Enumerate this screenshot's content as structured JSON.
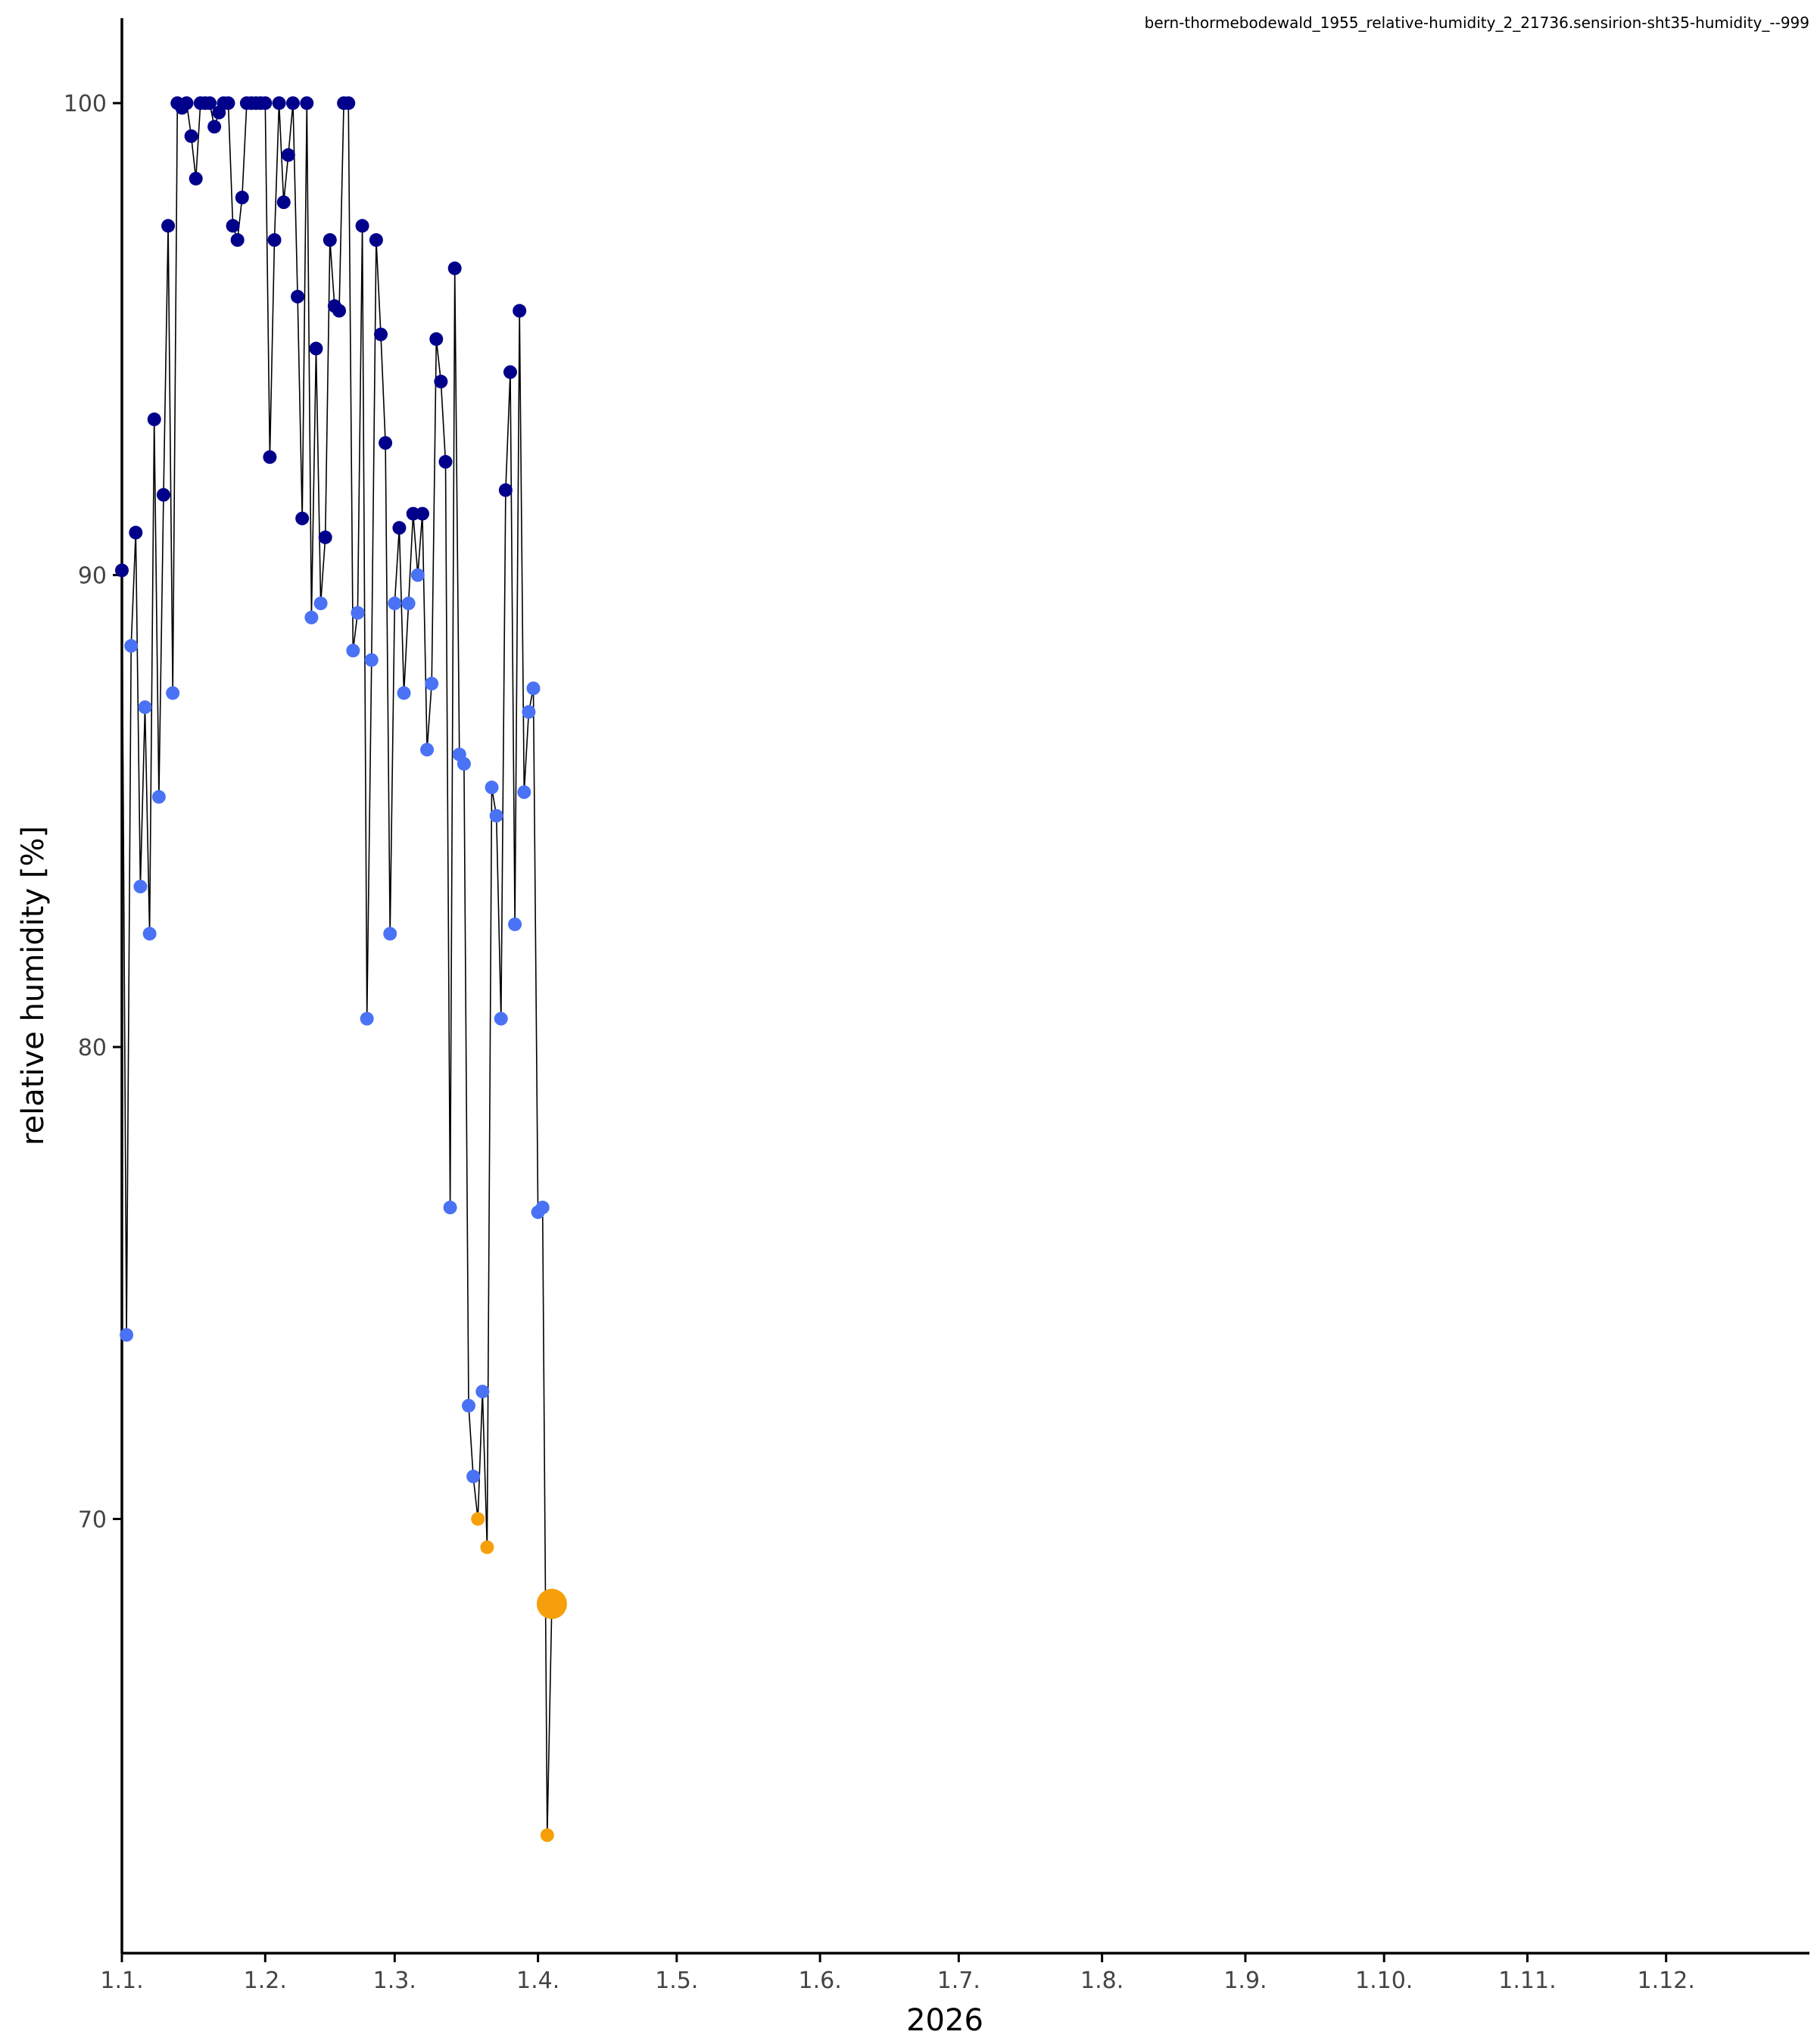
{
  "chart_data": {
    "type": "scatter",
    "title": "bern-thormebodewald_1955_relative-humidity_2_21736.sensirion-sht35-humidity_--999",
    "xlabel": "2026",
    "ylabel": "relative humidity [%]",
    "x_ticks": [
      "1.1.",
      "1.2.",
      "1.3.",
      "1.4.",
      "1.5.",
      "1.6.",
      "1.7.",
      "1.8.",
      "1.9.",
      "1.10.",
      "1.11.",
      "1.12."
    ],
    "y_ticks": [
      70,
      80,
      90,
      100
    ],
    "xlim": [
      "2026-01-01",
      "2026-12-31"
    ],
    "ylim": [
      60.8,
      101.8
    ],
    "grid": false,
    "legend": "none",
    "line_color": "#000000",
    "category_colors": {
      "high": "#00008b",
      "mid": "#4a72f5",
      "low": "#f5a00a"
    },
    "series": [
      {
        "x": "2026-01-01",
        "y": 90.1,
        "category": "high"
      },
      {
        "x": "2026-01-02",
        "y": 73.9,
        "category": "mid"
      },
      {
        "x": "2026-01-03",
        "y": 88.5,
        "category": "mid"
      },
      {
        "x": "2026-01-04",
        "y": 90.9,
        "category": "high"
      },
      {
        "x": "2026-01-05",
        "y": 83.4,
        "category": "mid"
      },
      {
        "x": "2026-01-06",
        "y": 87.2,
        "category": "mid"
      },
      {
        "x": "2026-01-07",
        "y": 82.4,
        "category": "mid"
      },
      {
        "x": "2026-01-08",
        "y": 93.3,
        "category": "high"
      },
      {
        "x": "2026-01-09",
        "y": 85.3,
        "category": "mid"
      },
      {
        "x": "2026-01-10",
        "y": 91.7,
        "category": "high"
      },
      {
        "x": "2026-01-11",
        "y": 97.4,
        "category": "high"
      },
      {
        "x": "2026-01-12",
        "y": 87.5,
        "category": "mid"
      },
      {
        "x": "2026-01-13",
        "y": 100.0,
        "category": "high"
      },
      {
        "x": "2026-01-14",
        "y": 99.9,
        "category": "high"
      },
      {
        "x": "2026-01-15",
        "y": 100.0,
        "category": "high"
      },
      {
        "x": "2026-01-16",
        "y": 99.3,
        "category": "high"
      },
      {
        "x": "2026-01-17",
        "y": 98.4,
        "category": "high"
      },
      {
        "x": "2026-01-18",
        "y": 100.0,
        "category": "high"
      },
      {
        "x": "2026-01-19",
        "y": 100.0,
        "category": "high"
      },
      {
        "x": "2026-01-20",
        "y": 100.0,
        "category": "high"
      },
      {
        "x": "2026-01-21",
        "y": 99.5,
        "category": "high"
      },
      {
        "x": "2026-01-22",
        "y": 99.8,
        "category": "high"
      },
      {
        "x": "2026-01-23",
        "y": 100.0,
        "category": "high"
      },
      {
        "x": "2026-01-24",
        "y": 100.0,
        "category": "high"
      },
      {
        "x": "2026-01-25",
        "y": 97.4,
        "category": "high"
      },
      {
        "x": "2026-01-26",
        "y": 97.1,
        "category": "high"
      },
      {
        "x": "2026-01-27",
        "y": 98.0,
        "category": "high"
      },
      {
        "x": "2026-01-28",
        "y": 100.0,
        "category": "high"
      },
      {
        "x": "2026-01-29",
        "y": 100.0,
        "category": "high"
      },
      {
        "x": "2026-01-30",
        "y": 100.0,
        "category": "high"
      },
      {
        "x": "2026-01-31",
        "y": 100.0,
        "category": "high"
      },
      {
        "x": "2026-02-01",
        "y": 100.0,
        "category": "high"
      },
      {
        "x": "2026-02-02",
        "y": 92.5,
        "category": "high"
      },
      {
        "x": "2026-02-03",
        "y": 97.1,
        "category": "high"
      },
      {
        "x": "2026-02-04",
        "y": 100.0,
        "category": "high"
      },
      {
        "x": "2026-02-05",
        "y": 97.9,
        "category": "high"
      },
      {
        "x": "2026-02-06",
        "y": 98.9,
        "category": "high"
      },
      {
        "x": "2026-02-07",
        "y": 100.0,
        "category": "high"
      },
      {
        "x": "2026-02-08",
        "y": 95.9,
        "category": "high"
      },
      {
        "x": "2026-02-09",
        "y": 91.2,
        "category": "high"
      },
      {
        "x": "2026-02-10",
        "y": 100.0,
        "category": "high"
      },
      {
        "x": "2026-02-11",
        "y": 89.1,
        "category": "mid"
      },
      {
        "x": "2026-02-12",
        "y": 94.8,
        "category": "high"
      },
      {
        "x": "2026-02-13",
        "y": 89.4,
        "category": "mid"
      },
      {
        "x": "2026-02-14",
        "y": 90.8,
        "category": "high"
      },
      {
        "x": "2026-02-15",
        "y": 97.1,
        "category": "high"
      },
      {
        "x": "2026-02-16",
        "y": 95.7,
        "category": "high"
      },
      {
        "x": "2026-02-17",
        "y": 95.6,
        "category": "high"
      },
      {
        "x": "2026-02-18",
        "y": 100.0,
        "category": "high"
      },
      {
        "x": "2026-02-19",
        "y": 100.0,
        "category": "high"
      },
      {
        "x": "2026-02-20",
        "y": 88.4,
        "category": "mid"
      },
      {
        "x": "2026-02-21",
        "y": 89.2,
        "category": "mid"
      },
      {
        "x": "2026-02-22",
        "y": 97.4,
        "category": "high"
      },
      {
        "x": "2026-02-23",
        "y": 80.6,
        "category": "mid"
      },
      {
        "x": "2026-02-24",
        "y": 88.2,
        "category": "mid"
      },
      {
        "x": "2026-02-25",
        "y": 97.1,
        "category": "high"
      },
      {
        "x": "2026-02-26",
        "y": 95.1,
        "category": "high"
      },
      {
        "x": "2026-02-27",
        "y": 92.8,
        "category": "high"
      },
      {
        "x": "2026-02-28",
        "y": 82.4,
        "category": "mid"
      },
      {
        "x": "2026-03-01",
        "y": 89.4,
        "category": "mid"
      },
      {
        "x": "2026-03-02",
        "y": 91.0,
        "category": "high"
      },
      {
        "x": "2026-03-03",
        "y": 87.5,
        "category": "mid"
      },
      {
        "x": "2026-03-04",
        "y": 89.4,
        "category": "mid"
      },
      {
        "x": "2026-03-05",
        "y": 91.3,
        "category": "high"
      },
      {
        "x": "2026-03-06",
        "y": 90.0,
        "category": "mid"
      },
      {
        "x": "2026-03-07",
        "y": 91.3,
        "category": "high"
      },
      {
        "x": "2026-03-08",
        "y": 86.3,
        "category": "mid"
      },
      {
        "x": "2026-03-09",
        "y": 87.7,
        "category": "mid"
      },
      {
        "x": "2026-03-10",
        "y": 95.0,
        "category": "high"
      },
      {
        "x": "2026-03-11",
        "y": 94.1,
        "category": "high"
      },
      {
        "x": "2026-03-12",
        "y": 92.4,
        "category": "high"
      },
      {
        "x": "2026-03-13",
        "y": 76.6,
        "category": "mid"
      },
      {
        "x": "2026-03-14",
        "y": 96.5,
        "category": "high"
      },
      {
        "x": "2026-03-15",
        "y": 86.2,
        "category": "mid"
      },
      {
        "x": "2026-03-16",
        "y": 86.0,
        "category": "mid"
      },
      {
        "x": "2026-03-17",
        "y": 72.4,
        "category": "mid"
      },
      {
        "x": "2026-03-18",
        "y": 70.9,
        "category": "mid"
      },
      {
        "x": "2026-03-19",
        "y": 70.0,
        "category": "low"
      },
      {
        "x": "2026-03-20",
        "y": 72.7,
        "category": "mid"
      },
      {
        "x": "2026-03-21",
        "y": 69.4,
        "category": "low"
      },
      {
        "x": "2026-03-22",
        "y": 85.5,
        "category": "mid"
      },
      {
        "x": "2026-03-23",
        "y": 84.9,
        "category": "mid"
      },
      {
        "x": "2026-03-24",
        "y": 80.6,
        "category": "mid"
      },
      {
        "x": "2026-03-25",
        "y": 91.8,
        "category": "high"
      },
      {
        "x": "2026-03-26",
        "y": 94.3,
        "category": "high"
      },
      {
        "x": "2026-03-27",
        "y": 82.6,
        "category": "mid"
      },
      {
        "x": "2026-03-28",
        "y": 95.6,
        "category": "high"
      },
      {
        "x": "2026-03-29",
        "y": 85.4,
        "category": "mid"
      },
      {
        "x": "2026-03-30",
        "y": 87.1,
        "category": "mid"
      },
      {
        "x": "2026-03-31",
        "y": 87.6,
        "category": "mid"
      },
      {
        "x": "2026-04-01",
        "y": 76.5,
        "category": "mid"
      },
      {
        "x": "2026-04-02",
        "y": 76.6,
        "category": "mid"
      },
      {
        "x": "2026-04-03",
        "y": 63.3,
        "category": "low"
      },
      {
        "x": "2026-04-04",
        "y": 68.2,
        "category": "low",
        "highlight": true
      }
    ]
  }
}
